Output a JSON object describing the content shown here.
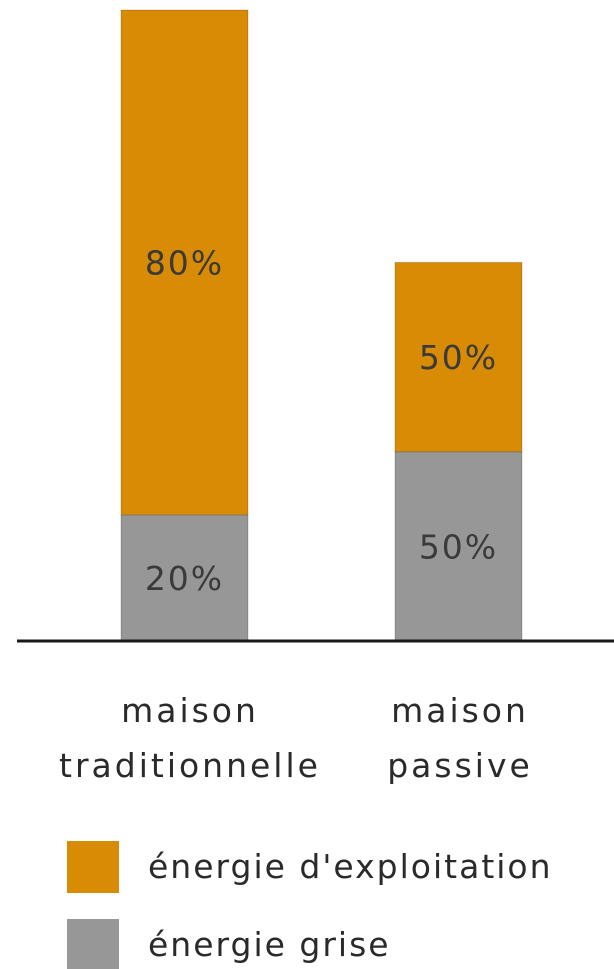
{
  "chart_data": {
    "type": "bar",
    "stacked": true,
    "categories": [
      [
        "maison",
        "traditionnelle"
      ],
      [
        "maison",
        "passive"
      ]
    ],
    "series": [
      {
        "name": "énergie grise",
        "color": "#979797",
        "values": [
          20,
          50
        ],
        "labels": [
          "20%",
          "50%"
        ]
      },
      {
        "name": "énergie d'exploitation",
        "color": "#d88b04",
        "values": [
          80,
          50
        ],
        "labels": [
          "80%",
          "50%"
        ]
      }
    ],
    "totals_relative": [
      100,
      60
    ],
    "title": "",
    "xlabel": "",
    "ylabel": "",
    "legend": {
      "placement": "bottom",
      "order": [
        "énergie d'exploitation",
        "énergie grise"
      ]
    },
    "grid": false
  }
}
